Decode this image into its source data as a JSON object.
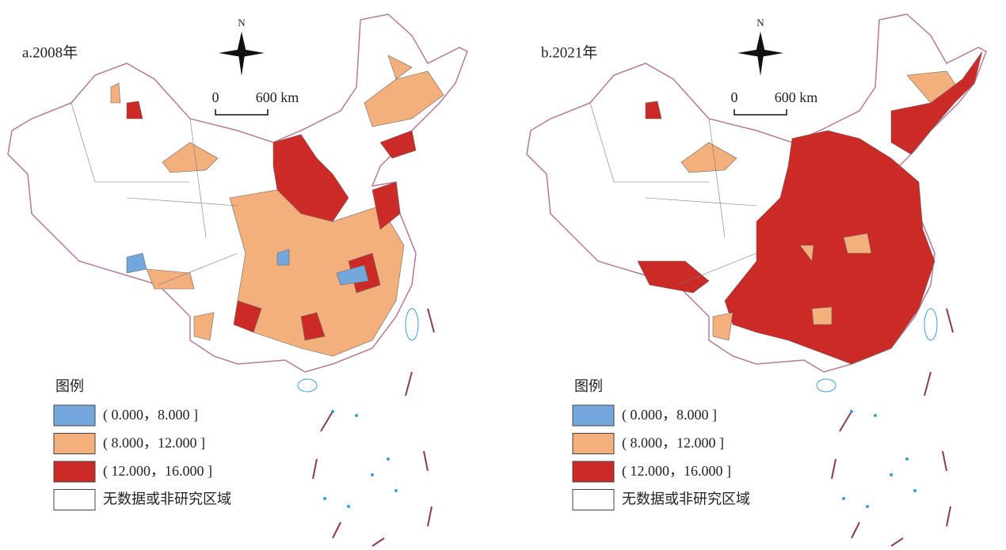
{
  "maps": [
    {
      "title": "a.2008年",
      "north": "N",
      "scale": {
        "start": "0",
        "end": "600 km"
      },
      "legend": {
        "title": "图例",
        "items": [
          {
            "label": "( 0.000，8.000 ]",
            "color": "#74a7dc"
          },
          {
            "label": "( 8.000，12.000 ]",
            "color": "#f3b07c"
          },
          {
            "label": "( 12.000，16.000 ]",
            "color": "#cb2a27"
          },
          {
            "label": "无数据或非研究区域",
            "color": "#ffffff"
          }
        ]
      }
    },
    {
      "title": "b.2021年",
      "north": "N",
      "scale": {
        "start": "0",
        "end": "600 km"
      },
      "legend": {
        "title": "图例",
        "items": [
          {
            "label": "( 0.000，8.000 ]",
            "color": "#74a7dc"
          },
          {
            "label": "( 8.000，12.000 ]",
            "color": "#f3b07c"
          },
          {
            "label": "( 12.000，16.000 ]",
            "color": "#cb2a27"
          },
          {
            "label": "无数据或非研究区域",
            "color": "#ffffff"
          }
        ]
      }
    }
  ]
}
